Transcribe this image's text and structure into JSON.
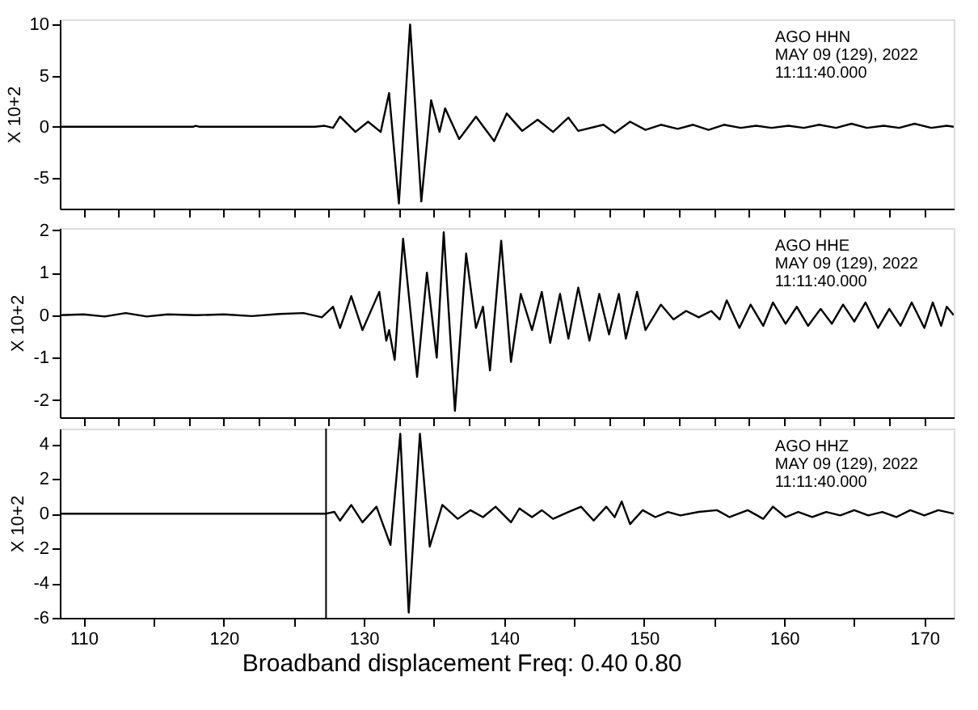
{
  "chart_data": [
    {
      "type": "line",
      "ylabel": "X 10+2",
      "xlim": [
        108.3,
        172.1
      ],
      "ylim": [
        -8,
        10.5
      ],
      "yticks": [
        10,
        5,
        0,
        -5
      ],
      "xticks": [
        110,
        {
          "value": 112.5,
          "label": null
        },
        {
          "value": 115,
          "label": null
        },
        {
          "value": 117.5,
          "label": null
        },
        120,
        {
          "value": 122.5,
          "label": null
        },
        {
          "value": 125,
          "label": null
        },
        {
          "value": 127.5,
          "label": null
        },
        130,
        {
          "value": 132.5,
          "label": null
        },
        {
          "value": 135,
          "label": null
        },
        {
          "value": 137.5,
          "label": null
        },
        140,
        {
          "value": 142.5,
          "label": null
        },
        {
          "value": 145,
          "label": null
        },
        {
          "value": 147.5,
          "label": null
        },
        150,
        {
          "value": 152.5,
          "label": null
        },
        {
          "value": 155,
          "label": null
        },
        {
          "value": 157.5,
          "label": null
        },
        160,
        {
          "value": 162.5,
          "label": null
        },
        {
          "value": 165,
          "label": null
        },
        {
          "value": 167.5,
          "label": null
        },
        170
      ],
      "tick_labels": "y",
      "grid": false,
      "annotations": [
        "AGO  HHN",
        "MAY 09 (129), 2022",
        "11:11:40.000"
      ],
      "series": [
        {
          "color": "#000000",
          "x": [
            108.3,
            117.8,
            118.0,
            118.3,
            126.5,
            127.2,
            127.8,
            128.3,
            129.4,
            130.3,
            131.2,
            131.8,
            132.5,
            133.3,
            134.1,
            134.8,
            135.4,
            135.8,
            136.8,
            138.0,
            139.3,
            140.2,
            141.3,
            142.4,
            143.5,
            144.6,
            145.3,
            147.1,
            147.9,
            149.0,
            150.1,
            151.2,
            152.4,
            153.5,
            154.6,
            155.7,
            156.9,
            158.0,
            159.1,
            160.3,
            161.4,
            162.5,
            163.7,
            164.8,
            165.9,
            167.1,
            168.2,
            169.3,
            170.5,
            171.6,
            172.1
          ],
          "values": [
            0,
            0,
            0.1,
            0,
            0,
            0.1,
            -0.1,
            1,
            -0.5,
            0.5,
            -0.5,
            3.3,
            -7.5,
            10,
            -7.3,
            2.6,
            -0.5,
            1.8,
            -1.2,
            1,
            -1.4,
            1.3,
            -0.4,
            0.7,
            -0.5,
            0.9,
            -0.4,
            0.2,
            -0.6,
            0.5,
            -0.3,
            0.2,
            -0.2,
            0.2,
            -0.3,
            0.2,
            -0.1,
            0.1,
            -0.1,
            0.1,
            -0.1,
            0.2,
            -0.1,
            0.3,
            -0.1,
            0.1,
            -0.1,
            0.3,
            -0.1,
            0.1,
            0
          ]
        }
      ]
    },
    {
      "type": "line",
      "ylabel": "X 10+2",
      "xlim": [
        108.3,
        172.1
      ],
      "ylim": [
        -2.4,
        2.05
      ],
      "yticks": [
        2,
        1,
        0,
        -1,
        -2
      ],
      "xticks": [
        110,
        {
          "value": 112.5,
          "label": null
        },
        {
          "value": 115,
          "label": null
        },
        {
          "value": 117.5,
          "label": null
        },
        120,
        {
          "value": 122.5,
          "label": null
        },
        {
          "value": 125,
          "label": null
        },
        {
          "value": 127.5,
          "label": null
        },
        130,
        {
          "value": 132.5,
          "label": null
        },
        {
          "value": 135,
          "label": null
        },
        {
          "value": 137.5,
          "label": null
        },
        140,
        {
          "value": 142.5,
          "label": null
        },
        {
          "value": 145,
          "label": null
        },
        {
          "value": 147.5,
          "label": null
        },
        150,
        {
          "value": 152.5,
          "label": null
        },
        {
          "value": 155,
          "label": null
        },
        {
          "value": 157.5,
          "label": null
        },
        160,
        {
          "value": 162.5,
          "label": null
        },
        {
          "value": 165,
          "label": null
        },
        {
          "value": 167.5,
          "label": null
        },
        170
      ],
      "tick_labels": "y",
      "grid": false,
      "annotations": [
        "AGO  HHE",
        "MAY 09 (129), 2022",
        "11:11:40.000"
      ],
      "series": [
        {
          "color": "#000000",
          "x": [
            108.3,
            110,
            111.5,
            113.0,
            114.5,
            116.0,
            118,
            120,
            122,
            124,
            125.7,
            127.0,
            127.8,
            128.3,
            129.1,
            129.9,
            131.1,
            131.6,
            131.8,
            132.2,
            132.8,
            133.8,
            134.5,
            135.2,
            135.7,
            136.5,
            137.3,
            138.0,
            138.5,
            139.0,
            139.8,
            140.5,
            141.2,
            142.0,
            142.7,
            143.3,
            144.0,
            144.6,
            145.3,
            146.1,
            146.8,
            147.5,
            148.2,
            148.7,
            149.5,
            150.1,
            151.2,
            152.1,
            153.0,
            153.9,
            154.8,
            155.4,
            155.9,
            156.8,
            157.6,
            158.5,
            159.2,
            160.1,
            160.9,
            161.7,
            162.6,
            163.4,
            164.2,
            165.0,
            165.8,
            166.7,
            167.5,
            168.3,
            169.1,
            170.0,
            170.6,
            171.2,
            171.6,
            172.1
          ],
          "values": [
            0,
            0.02,
            -0.03,
            0.05,
            -0.03,
            0.02,
            0,
            0.02,
            -0.02,
            0.03,
            0.05,
            -0.05,
            0.2,
            -0.3,
            0.45,
            -0.35,
            0.55,
            -0.6,
            -0.35,
            -1.05,
            1.8,
            -1.45,
            1.0,
            -1.0,
            1.95,
            -2.25,
            1.45,
            -0.3,
            0.2,
            -1.3,
            1.75,
            -1.1,
            0.5,
            -0.35,
            0.55,
            -0.65,
            0.5,
            -0.55,
            0.65,
            -0.6,
            0.5,
            -0.45,
            0.5,
            -0.55,
            0.55,
            -0.35,
            0.25,
            -0.1,
            0.1,
            -0.05,
            0.1,
            -0.1,
            0.35,
            -0.3,
            0.25,
            -0.25,
            0.3,
            -0.2,
            0.2,
            -0.25,
            0.15,
            -0.2,
            0.25,
            -0.15,
            0.3,
            -0.3,
            0.15,
            -0.25,
            0.3,
            -0.3,
            0.3,
            -0.25,
            0.2,
            0
          ]
        }
      ]
    },
    {
      "type": "line",
      "ylabel": "X 10+2",
      "xlim": [
        108.3,
        172.1
      ],
      "ylim": [
        -6,
        4.9
      ],
      "yticks": [
        4,
        2,
        0,
        -2,
        -4,
        -6
      ],
      "xticks": [
        110,
        {
          "value": 112.5,
          "label": null
        },
        {
          "value": 115,
          "label": null
        },
        {
          "value": 117.5,
          "label": null
        },
        120,
        {
          "value": 122.5,
          "label": null
        },
        {
          "value": 125,
          "label": null
        },
        {
          "value": 127.5,
          "label": null
        },
        130,
        {
          "value": 132.5,
          "label": null
        },
        {
          "value": 135,
          "label": null
        },
        {
          "value": 137.5,
          "label": null
        },
        140,
        {
          "value": 142.5,
          "label": null
        },
        {
          "value": 145,
          "label": null
        },
        {
          "value": 147.5,
          "label": null
        },
        150,
        {
          "value": 152.5,
          "label": null
        },
        {
          "value": 155,
          "label": null
        },
        {
          "value": 157.5,
          "label": null
        },
        160,
        {
          "value": 162.5,
          "label": null
        },
        {
          "value": 165,
          "label": null
        },
        {
          "value": 167.5,
          "label": null
        },
        170
      ],
      "grid": false,
      "annotations": [
        "AGO  HHZ",
        "MAY 09 (129), 2022",
        "11:11:40.000",
        "Broadband displacement Freq:  0.40  0.80"
      ],
      "ref_lines": [
        {
          "axis": "x",
          "value": 127.3,
          "color": "#000000"
        }
      ],
      "series": [
        {
          "color": "#000000",
          "x": [
            108.3,
            127.3,
            127.9,
            128.3,
            129.1,
            129.9,
            130.9,
            131.9,
            132.6,
            133.2,
            134.0,
            134.7,
            135.6,
            136.7,
            137.6,
            138.5,
            139.4,
            140.5,
            141.1,
            142.0,
            142.7,
            143.5,
            144.6,
            145.5,
            146.4,
            147.3,
            147.9,
            148.4,
            149.0,
            149.9,
            150.8,
            151.7,
            152.6,
            153.9,
            155.2,
            156.1,
            157.4,
            158.5,
            159.2,
            160.1,
            161.0,
            162.0,
            163.0,
            164.0,
            165.0,
            166.0,
            167.0,
            168.0,
            169.0,
            170.0,
            171.0,
            172.1
          ],
          "values": [
            0,
            0,
            0.1,
            -0.4,
            0.5,
            -0.5,
            0.4,
            -1.8,
            4.6,
            -5.7,
            4.6,
            -1.9,
            0.5,
            -0.3,
            0.2,
            -0.2,
            0.4,
            -0.5,
            0.3,
            -0.2,
            0.2,
            -0.3,
            0.1,
            0.4,
            -0.4,
            0.4,
            -0.2,
            0.7,
            -0.6,
            0.2,
            -0.2,
            0.1,
            -0.1,
            0.1,
            0.2,
            -0.2,
            0.2,
            -0.3,
            0.4,
            -0.2,
            0.1,
            -0.2,
            0.1,
            -0.1,
            0.2,
            -0.1,
            0.1,
            -0.2,
            0.2,
            -0.1,
            0.2,
            0
          ]
        }
      ]
    }
  ]
}
